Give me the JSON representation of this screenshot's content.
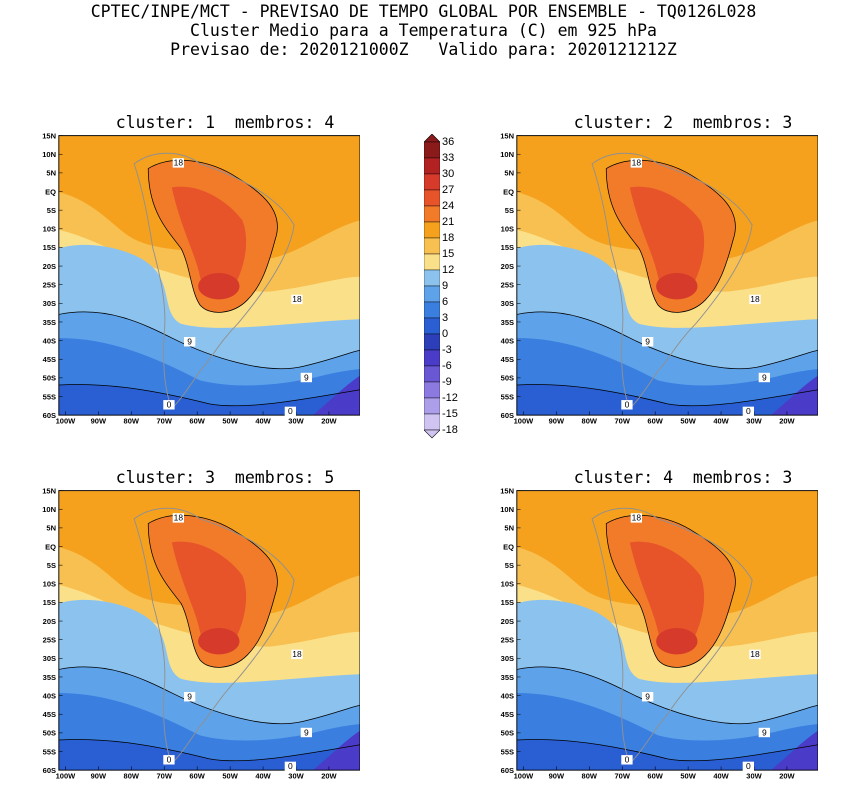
{
  "header": {
    "line1": "CPTEC/INPE/MCT - PREVISAO DE TEMPO GLOBAL POR ENSEMBLE - TQ0126L028",
    "line2": "Cluster Medio para a Temperatura (C) em 925 hPa",
    "line3": "Previsao de: 2020121000Z   Valido para: 2020121212Z"
  },
  "panels": [
    {
      "title": "cluster: 1  membros: 4"
    },
    {
      "title": "cluster: 2  membros: 3"
    },
    {
      "title": "cluster: 3  membros: 5"
    },
    {
      "title": "cluster: 4  membros: 3"
    }
  ],
  "lat_ticks": [
    "15N",
    "10N",
    "5N",
    "EQ",
    "5S",
    "10S",
    "15S",
    "20S",
    "25S",
    "30S",
    "35S",
    "40S",
    "45S",
    "50S",
    "55S",
    "60S"
  ],
  "lon_ticks": [
    "100W",
    "90W",
    "80W",
    "70W",
    "60W",
    "50W",
    "40W",
    "30W",
    "20W"
  ],
  "colorbar": {
    "labels": [
      "36",
      "33",
      "30",
      "27",
      "24",
      "21",
      "18",
      "15",
      "12",
      "9",
      "6",
      "3",
      "0",
      "-3",
      "-6",
      "-9",
      "-12",
      "-15",
      "-18"
    ],
    "colors": [
      "#8b1a1a",
      "#b22222",
      "#d63a2a",
      "#e8542a",
      "#f27b2a",
      "#f5a11e",
      "#f8c050",
      "#fbe08a",
      "#8cc3ee",
      "#5ea2ea",
      "#3a7fe0",
      "#2a5fd4",
      "#2d3fb8",
      "#4b3bc9",
      "#6a57d4",
      "#8c7ae0",
      "#ad9ee9",
      "#cfc4f2"
    ]
  },
  "contour_labels": [
    "18",
    "18",
    "9",
    "9",
    "0",
    "0"
  ]
}
